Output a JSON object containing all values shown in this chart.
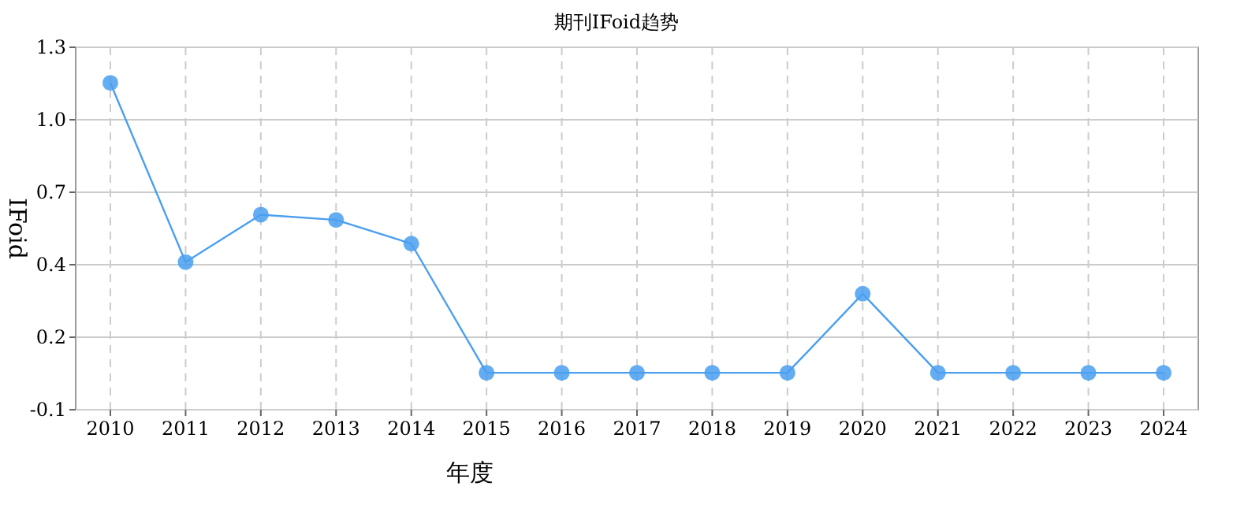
{
  "chart_data": {
    "type": "line",
    "title": "期刊IFoid趋势",
    "xlabel": "年度",
    "ylabel": "IFoid",
    "categories": [
      "2010",
      "2011",
      "2012",
      "2013",
      "2014",
      "2015",
      "2016",
      "2017",
      "2018",
      "2019",
      "2020",
      "2021",
      "2022",
      "2023",
      "2024"
    ],
    "series": [
      {
        "color": "#4a9ff0",
        "values": [
          1.14,
          0.46,
          0.64,
          0.62,
          0.53,
          0.04,
          0.04,
          0.04,
          0.04,
          0.04,
          0.34,
          0.04,
          0.04,
          0.04,
          0.04
        ]
      }
    ],
    "ylim": [
      -0.1,
      1.275
    ],
    "yticks": [
      {
        "value": -0.1,
        "label": "-0.1"
      },
      {
        "value": 0.175,
        "label": "0.2"
      },
      {
        "value": 0.45,
        "label": "0.4"
      },
      {
        "value": 0.725,
        "label": "0.7"
      },
      {
        "value": 1.0,
        "label": "1.0"
      },
      {
        "value": 1.275,
        "label": "1.3"
      }
    ],
    "grid": true,
    "marker": "circle",
    "line_style": "solid"
  }
}
